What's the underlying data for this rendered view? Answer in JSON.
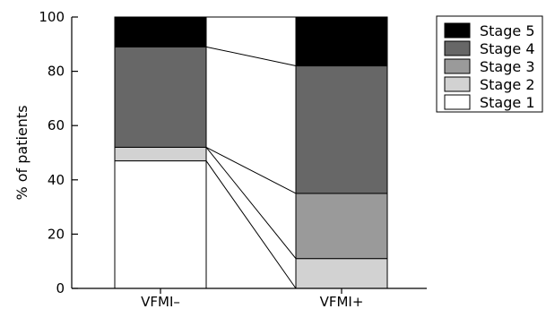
{
  "chart_data": {
    "type": "bar",
    "stacked": true,
    "categories": [
      "VFMI–",
      "VFMI+"
    ],
    "series": [
      {
        "name": "Stage 1",
        "color": "#ffffff",
        "values": [
          47,
          0
        ]
      },
      {
        "name": "Stage 2",
        "color": "#d2d2d2",
        "values": [
          5,
          11
        ]
      },
      {
        "name": "Stage 3",
        "color": "#9a9a9a",
        "values": [
          0,
          24
        ]
      },
      {
        "name": "Stage 4",
        "color": "#676767",
        "values": [
          37,
          47
        ]
      },
      {
        "name": "Stage 5",
        "color": "#000000",
        "values": [
          11,
          18
        ]
      }
    ],
    "ylabel": "% of patients",
    "xlabel": "",
    "ylim": [
      0,
      100
    ],
    "yticks": [
      0,
      20,
      40,
      60,
      80,
      100
    ],
    "connector_lines": true,
    "legend_position": "right",
    "grid": false
  }
}
